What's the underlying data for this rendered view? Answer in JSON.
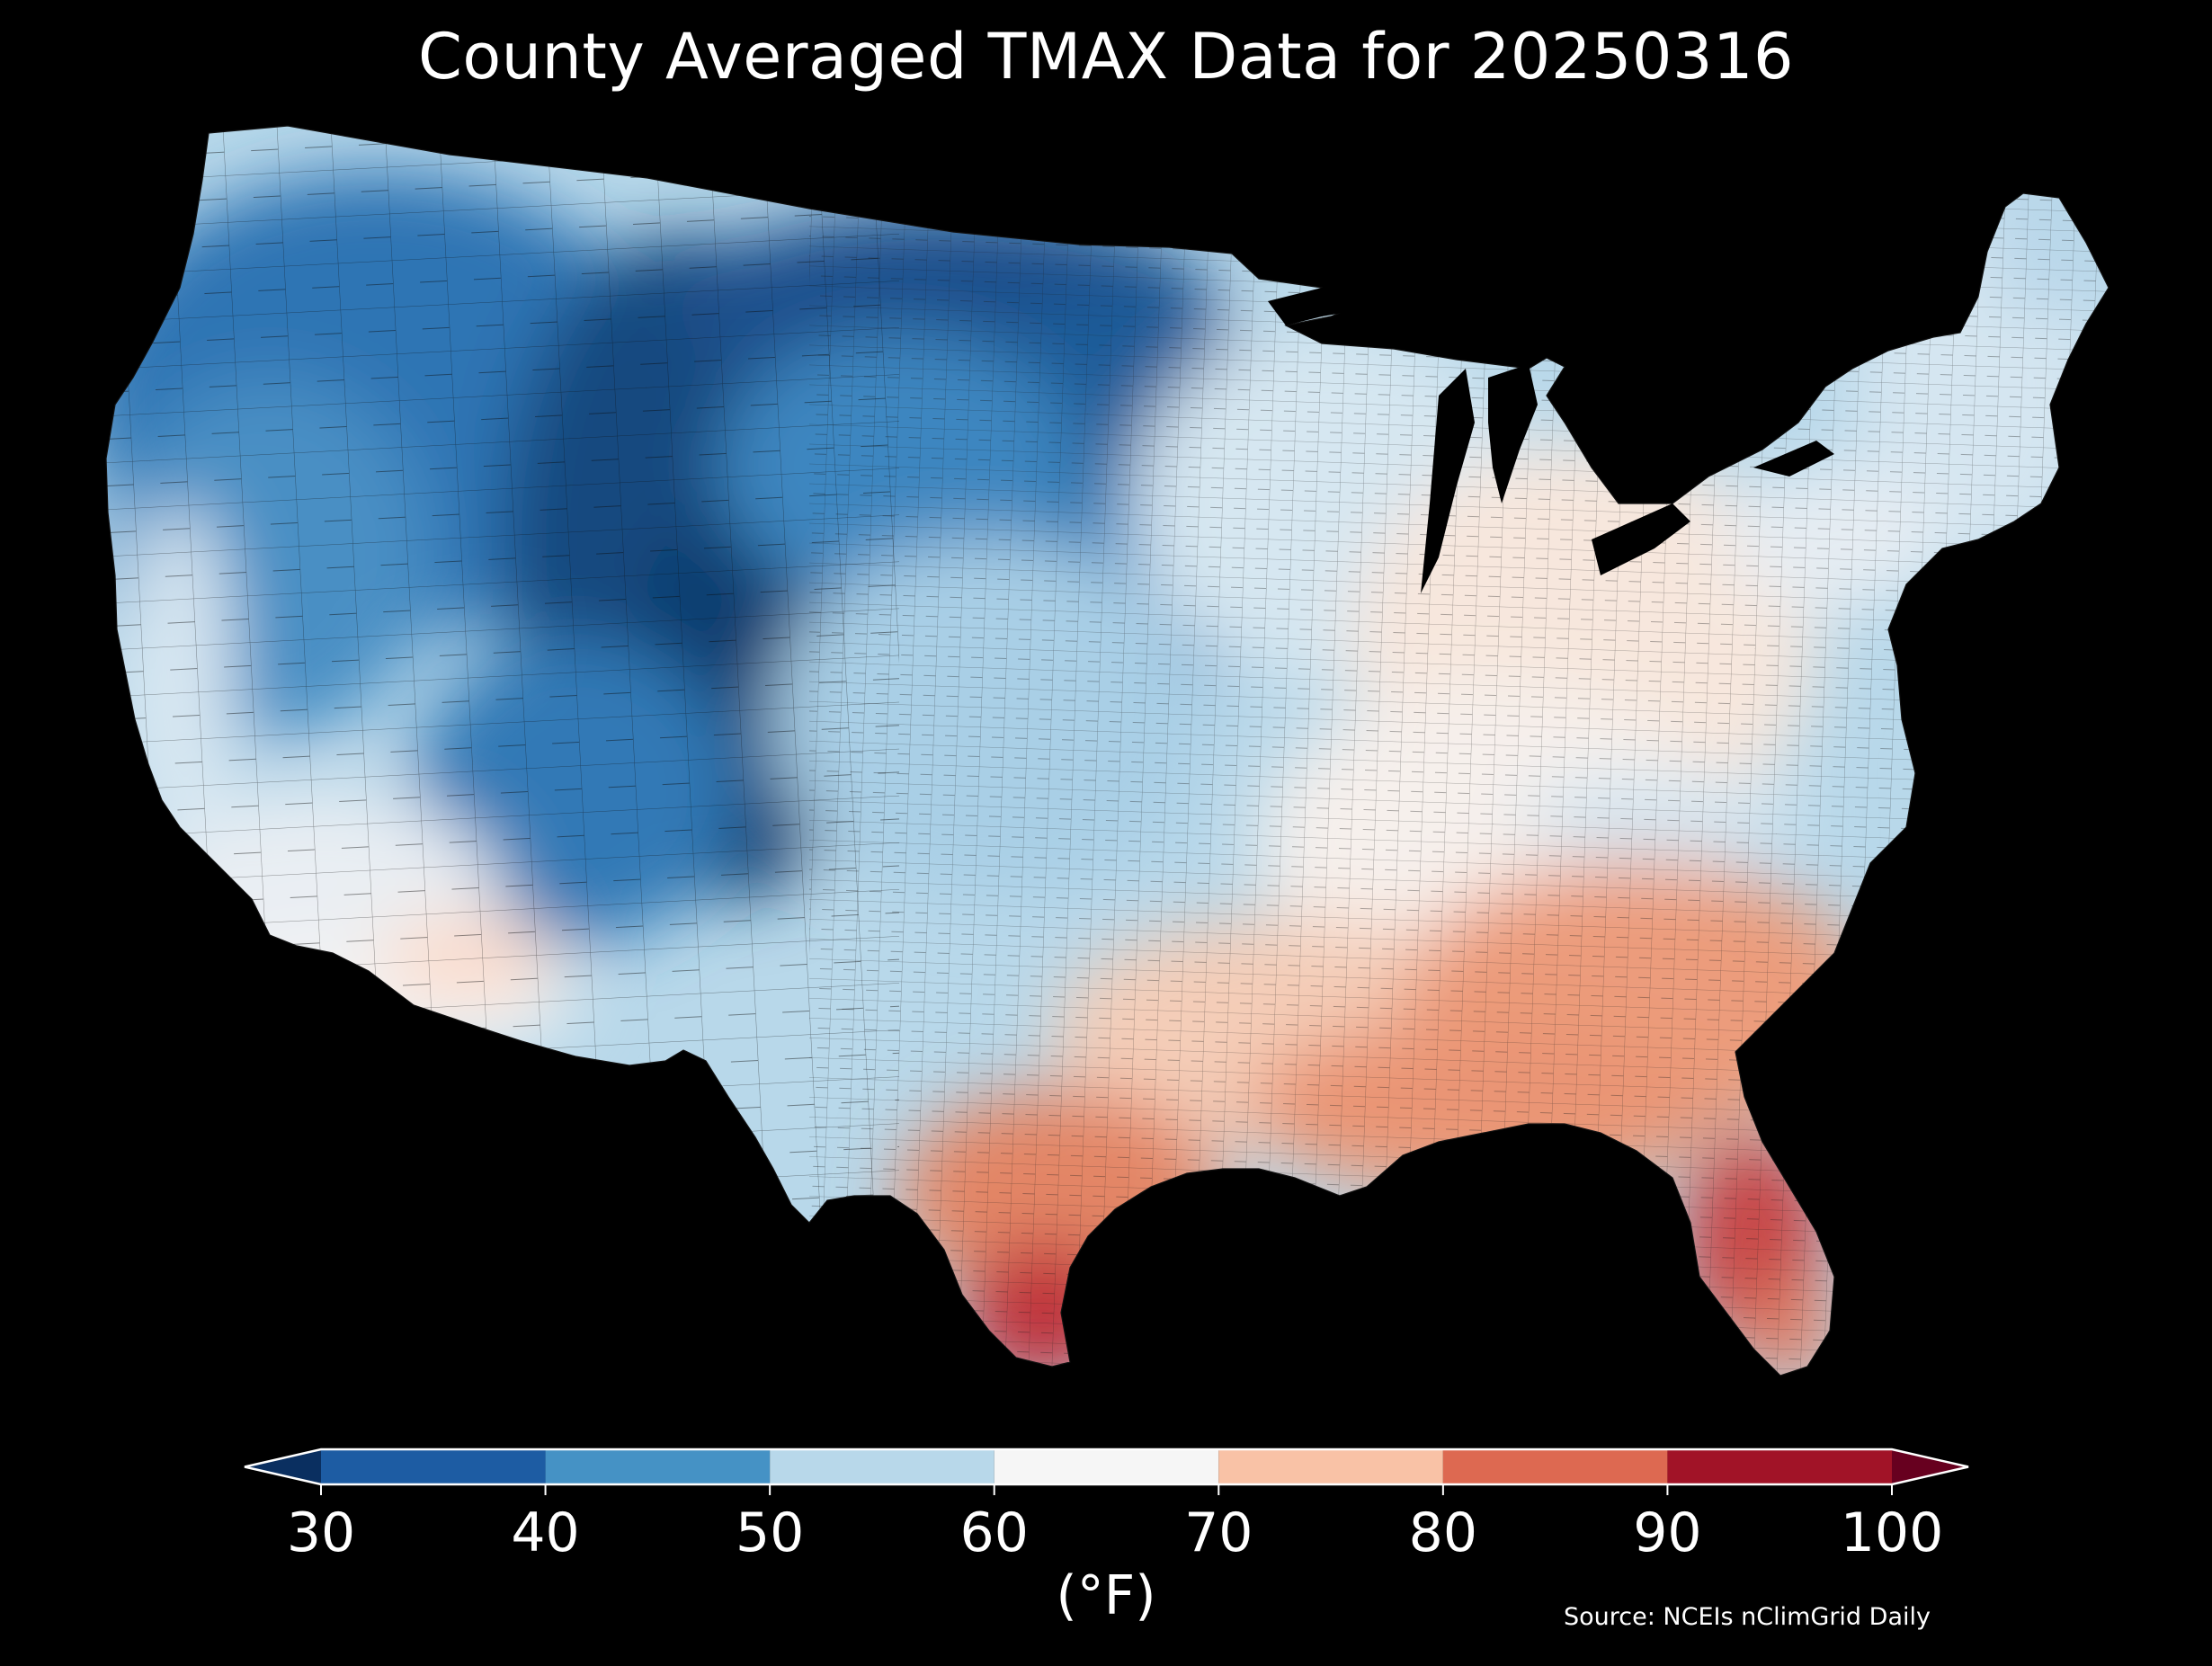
{
  "title": "County Averaged TMAX Data for 20250316",
  "map_data": {
    "region": "CONUS",
    "variable": "TMAX",
    "aggregation": "County Averaged",
    "date": "20250316",
    "colormap": "RdBu_r",
    "regional_pattern": [
      {
        "area": "Rocky Mountains (CO, WY, MT)",
        "tmax_f": "30-40"
      },
      {
        "area": "Northern Plains (ND, MN)",
        "tmax_f": "30-40"
      },
      {
        "area": "Pacific Northwest and Great Basin",
        "tmax_f": "40-50"
      },
      {
        "area": "Central Plains (NE, KS, IA)",
        "tmax_f": "50-60"
      },
      {
        "area": "Northeast",
        "tmax_f": "50-60"
      },
      {
        "area": "California coast and Southwest deserts",
        "tmax_f": "60-70"
      },
      {
        "area": "Ohio Valley and Mid-Atlantic",
        "tmax_f": "60-70"
      },
      {
        "area": "Gulf Coast and Southeast",
        "tmax_f": "70-80"
      },
      {
        "area": "South Texas and Florida",
        "tmax_f": "80-90"
      }
    ]
  },
  "colorbar": {
    "ticks": [
      "30",
      "40",
      "50",
      "60",
      "70",
      "80",
      "90",
      "100"
    ],
    "bins": [
      {
        "from": 30,
        "to": 40,
        "color": "#1d5ca3"
      },
      {
        "from": 40,
        "to": 50,
        "color": "#4592c5"
      },
      {
        "from": 50,
        "to": 60,
        "color": "#b8d8ea"
      },
      {
        "from": 60,
        "to": 70,
        "color": "#f6f6f6"
      },
      {
        "from": 70,
        "to": 80,
        "color": "#f9c2a6"
      },
      {
        "from": 80,
        "to": 90,
        "color": "#dd6951"
      },
      {
        "from": 90,
        "to": 100,
        "color": "#a11327"
      }
    ],
    "under_color": "#0a2f60",
    "over_color": "#67001f",
    "extend": "both",
    "unit_label": "(°F)"
  },
  "source": "Source: NCEIs nClimGrid Daily"
}
